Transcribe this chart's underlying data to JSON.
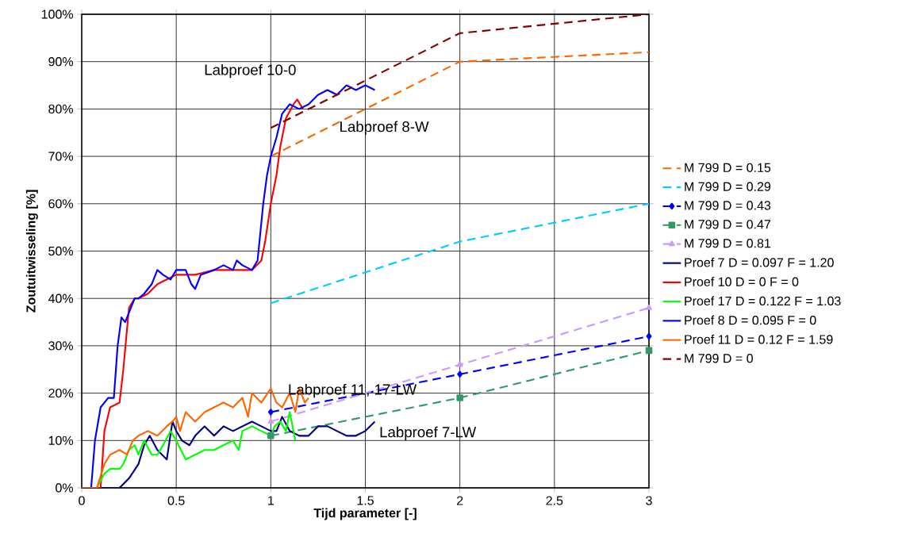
{
  "chart_data": {
    "type": "line",
    "xlabel": "Tijd parameter [-]",
    "ylabel": "Zoutuitwisseling [%]",
    "xlim": [
      0,
      3
    ],
    "xticks": [
      0,
      0.5,
      1,
      1.5,
      2,
      2.5,
      3
    ],
    "ylim": [
      0,
      100
    ],
    "yticks": [
      {
        "value": 0,
        "label": "0%"
      },
      {
        "value": 10,
        "label": "10%"
      },
      {
        "value": 20,
        "label": "20%"
      },
      {
        "value": 30,
        "label": "30%"
      },
      {
        "value": 40,
        "label": "40%"
      },
      {
        "value": 50,
        "label": "50%"
      },
      {
        "value": 60,
        "label": "60%"
      },
      {
        "value": 70,
        "label": "70%"
      },
      {
        "value": 80,
        "label": "80%"
      },
      {
        "value": 90,
        "label": "90%"
      },
      {
        "value": 100,
        "label": "100%"
      }
    ],
    "grid": true,
    "legend": "right",
    "series": [
      {
        "name": "M 799 D = 0.15",
        "color": "#ff6600",
        "line_style": "dashed",
        "marker": "none",
        "x": [
          1,
          2,
          3
        ],
        "values": [
          70,
          90,
          92
        ]
      },
      {
        "name": "M 799 D = 0.29",
        "color": "#00ccff",
        "line_style": "dashed",
        "marker": "none",
        "x": [
          1,
          2,
          3
        ],
        "values": [
          39,
          52,
          60
        ]
      },
      {
        "name": "M 799 D = 0.43",
        "color": "#0000ff",
        "line_style": "dashed",
        "marker": "diamond",
        "x": [
          1,
          2,
          3
        ],
        "values": [
          16,
          24,
          32
        ]
      },
      {
        "name": "M 799 D = 0.47",
        "color": "#339966",
        "line_style": "dashed",
        "marker": "square",
        "x": [
          1,
          2,
          3
        ],
        "values": [
          11,
          19,
          29
        ]
      },
      {
        "name": "M 799 D = 0.81",
        "color": "#cc99ff",
        "line_style": "dashed",
        "marker": "triangle",
        "x": [
          1,
          2,
          3
        ],
        "values": [
          14,
          26,
          38
        ]
      },
      {
        "name": "Proef 7 D = 0.097 F = 1.20",
        "color": "#000080",
        "line_style": "solid",
        "marker": "none",
        "x": [
          0,
          0.2,
          0.25,
          0.3,
          0.33,
          0.36,
          0.4,
          0.45,
          0.48,
          0.5,
          0.53,
          0.57,
          0.6,
          0.65,
          0.7,
          0.75,
          0.8,
          0.85,
          0.9,
          0.95,
          1.0,
          1.03,
          1.06,
          1.1,
          1.15,
          1.2,
          1.25,
          1.3,
          1.35,
          1.4,
          1.45,
          1.5,
          1.55
        ],
        "values": [
          0,
          0,
          2,
          5,
          9,
          11,
          8,
          6,
          14,
          12,
          10,
          9,
          11,
          13,
          11,
          13,
          12,
          13,
          14,
          13,
          12,
          12,
          15,
          12,
          11,
          11,
          13,
          13,
          12,
          11,
          11,
          12,
          14
        ]
      },
      {
        "name": "Proef 10 D = 0 F = 0",
        "color": "#ff0000",
        "line_style": "solid",
        "marker": "none",
        "x": [
          0,
          0.1,
          0.12,
          0.15,
          0.2,
          0.22,
          0.25,
          0.28,
          0.3,
          0.35,
          0.4,
          0.45,
          0.5,
          0.55,
          0.6,
          0.7,
          0.8,
          0.9,
          0.95,
          0.97,
          1.0,
          1.03,
          1.05,
          1.08,
          1.12,
          1.14,
          1.17
        ],
        "values": [
          0,
          0,
          12,
          17,
          18,
          25,
          38,
          40,
          40,
          41,
          43,
          44,
          45,
          45,
          45,
          46,
          46,
          46,
          48,
          52,
          60,
          66,
          72,
          78,
          81,
          82,
          80
        ]
      },
      {
        "name": "Proef 17 D = 0.122 F = 1.03",
        "color": "#00ff00",
        "line_style": "solid",
        "marker": "none",
        "x": [
          0,
          0.08,
          0.12,
          0.15,
          0.2,
          0.22,
          0.25,
          0.28,
          0.3,
          0.33,
          0.37,
          0.4,
          0.43,
          0.47,
          0.5,
          0.55,
          0.6,
          0.65,
          0.7,
          0.75,
          0.8,
          0.83,
          0.85,
          0.9,
          0.95,
          1.0,
          1.02,
          1.05,
          1.08,
          1.1,
          1.13
        ],
        "values": [
          0,
          0,
          3,
          4,
          4,
          5,
          8,
          9,
          7,
          10,
          7,
          7,
          9,
          12,
          10,
          6,
          7,
          8,
          8,
          9,
          10,
          8,
          12,
          13,
          12,
          11,
          13,
          14,
          12,
          16,
          10
        ]
      },
      {
        "name": "Proef 8 D = 0.095 F = 0",
        "color": "#0000ff",
        "line_style": "solid",
        "marker": "none",
        "x": [
          0,
          0.05,
          0.07,
          0.1,
          0.14,
          0.17,
          0.19,
          0.21,
          0.23,
          0.25,
          0.28,
          0.3,
          0.33,
          0.37,
          0.4,
          0.43,
          0.47,
          0.5,
          0.55,
          0.58,
          0.6,
          0.63,
          0.7,
          0.75,
          0.8,
          0.82,
          0.85,
          0.9,
          0.93,
          0.96,
          0.98,
          1.0,
          1.03,
          1.06,
          1.1,
          1.15,
          1.2,
          1.25,
          1.3,
          1.35,
          1.4,
          1.45,
          1.5,
          1.55
        ],
        "values": [
          0,
          0,
          10,
          17,
          19,
          19,
          30,
          36,
          35,
          37,
          40,
          40,
          41,
          43,
          46,
          45,
          44,
          46,
          46,
          43,
          42,
          45,
          46,
          47,
          46,
          48,
          47,
          46,
          48,
          60,
          66,
          70,
          74,
          79,
          81,
          80,
          81,
          83,
          84,
          83,
          85,
          84,
          85,
          84
        ]
      },
      {
        "name": "Proef 11 D = 0.12 F = 1.59",
        "color": "#ff6600",
        "line_style": "solid",
        "marker": "none",
        "x": [
          0,
          0.08,
          0.12,
          0.15,
          0.2,
          0.24,
          0.27,
          0.3,
          0.35,
          0.4,
          0.45,
          0.48,
          0.5,
          0.52,
          0.55,
          0.6,
          0.65,
          0.7,
          0.75,
          0.8,
          0.85,
          0.88,
          0.9,
          0.95,
          1.0,
          1.03,
          1.06,
          1.1,
          1.13,
          1.15,
          1.18,
          1.2
        ],
        "values": [
          0,
          0,
          5,
          7,
          8,
          7,
          10,
          11,
          12,
          11,
          13,
          14,
          15,
          12,
          16,
          14,
          16,
          17,
          18,
          17,
          19,
          15,
          20,
          18,
          21,
          18,
          17,
          20,
          16,
          21,
          18,
          19
        ]
      },
      {
        "name": "M 799 D = 0",
        "color": "#800000",
        "line_style": "dashed",
        "marker": "none",
        "x": [
          1,
          2,
          3
        ],
        "values": [
          76,
          96,
          100
        ]
      }
    ],
    "annotations": [
      "Labproef 10-0",
      "Labproef 8-W",
      "Labproef 11, 17-LW",
      "Labproef 7-LW"
    ]
  }
}
